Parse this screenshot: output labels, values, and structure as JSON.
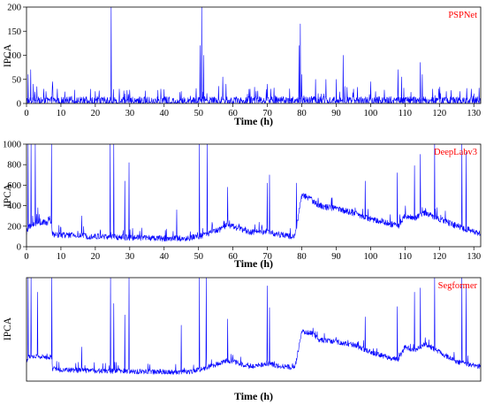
{
  "chart_data": [
    {
      "type": "line",
      "panel_id": "pspnet",
      "legend_label": "PSPNet",
      "ylabel": "IPCA",
      "xlabel": "Time (h)",
      "xlim": [
        0,
        132
      ],
      "ylim": [
        0,
        200
      ],
      "xticks": [
        0,
        10,
        20,
        30,
        40,
        50,
        60,
        70,
        80,
        90,
        100,
        110,
        120,
        130
      ],
      "yticks": [
        0,
        50,
        100,
        150,
        200
      ],
      "show_ytick_labels": true,
      "series_color": "#0000ff",
      "legend_color": "#ff0000",
      "baseline": [
        [
          0,
          5
        ],
        [
          20,
          5
        ],
        [
          40,
          5
        ],
        [
          60,
          5
        ],
        [
          80,
          6
        ],
        [
          100,
          6
        ],
        [
          120,
          5
        ],
        [
          132,
          5
        ]
      ],
      "noise": 9,
      "spikes": [
        [
          0.5,
          60
        ],
        [
          1.2,
          70
        ],
        [
          2,
          40
        ],
        [
          3,
          35
        ],
        [
          5,
          30
        ],
        [
          7.5,
          45
        ],
        [
          9,
          30
        ],
        [
          14,
          28
        ],
        [
          20,
          25
        ],
        [
          24.6,
          200
        ],
        [
          27,
          30
        ],
        [
          30,
          28
        ],
        [
          39,
          30
        ],
        [
          45,
          25
        ],
        [
          50.4,
          120
        ],
        [
          50.9,
          200
        ],
        [
          51.5,
          100
        ],
        [
          57,
          55
        ],
        [
          58,
          40
        ],
        [
          65,
          30
        ],
        [
          70,
          40
        ],
        [
          71,
          30
        ],
        [
          79.2,
          120
        ],
        [
          79.6,
          165
        ],
        [
          80,
          60
        ],
        [
          84,
          50
        ],
        [
          87,
          50
        ],
        [
          90,
          50
        ],
        [
          92,
          100
        ],
        [
          95,
          30
        ],
        [
          100,
          45
        ],
        [
          104,
          28
        ],
        [
          108,
          70
        ],
        [
          109,
          55
        ],
        [
          114.5,
          85
        ],
        [
          115,
          60
        ],
        [
          118,
          30
        ],
        [
          122,
          25
        ],
        [
          126,
          25
        ],
        [
          130,
          20
        ]
      ]
    },
    {
      "type": "line",
      "panel_id": "deeplabv3",
      "legend_label": "DeepLabv3",
      "ylabel": "IPCA",
      "xlabel": "Time (h)",
      "xlim": [
        0,
        132
      ],
      "ylim": [
        0,
        1000
      ],
      "xticks": [
        0,
        10,
        20,
        30,
        40,
        50,
        60,
        70,
        80,
        90,
        100,
        110,
        120,
        130
      ],
      "yticks": [
        0,
        200,
        400,
        600,
        800,
        1000
      ],
      "show_ytick_labels": true,
      "series_color": "#0000ff",
      "legend_color": "#ff0000",
      "baseline": [
        [
          0,
          140
        ],
        [
          1,
          200
        ],
        [
          3,
          230
        ],
        [
          7.3,
          240
        ],
        [
          7.5,
          120
        ],
        [
          10,
          115
        ],
        [
          20,
          100
        ],
        [
          30,
          90
        ],
        [
          40,
          80
        ],
        [
          47,
          80
        ],
        [
          50,
          100
        ],
        [
          55,
          150
        ],
        [
          58,
          200
        ],
        [
          60,
          200
        ],
        [
          65,
          140
        ],
        [
          70,
          150
        ],
        [
          73,
          120
        ],
        [
          78,
          100
        ],
        [
          79,
          300
        ],
        [
          80,
          500
        ],
        [
          82,
          480
        ],
        [
          85,
          400
        ],
        [
          90,
          370
        ],
        [
          95,
          330
        ],
        [
          100,
          270
        ],
        [
          105,
          230
        ],
        [
          108,
          200
        ],
        [
          110,
          300
        ],
        [
          113,
          280
        ],
        [
          116,
          330
        ],
        [
          120,
          270
        ],
        [
          125,
          200
        ],
        [
          130,
          150
        ],
        [
          132,
          130
        ]
      ],
      "noise": 30,
      "spikes": [
        [
          0.5,
          1000
        ],
        [
          1.3,
          1000
        ],
        [
          2.5,
          1000
        ],
        [
          3.3,
          380
        ],
        [
          7.3,
          1000
        ],
        [
          16,
          300
        ],
        [
          24.3,
          1000
        ],
        [
          25.4,
          1000
        ],
        [
          28.6,
          640
        ],
        [
          29.8,
          820
        ],
        [
          43.7,
          360
        ],
        [
          50.3,
          1000
        ],
        [
          52.5,
          1000
        ],
        [
          58.5,
          580
        ],
        [
          70,
          620
        ],
        [
          70.6,
          700
        ],
        [
          78.4,
          620
        ],
        [
          98.4,
          640
        ],
        [
          107.8,
          720
        ],
        [
          112.8,
          790
        ],
        [
          114.5,
          900
        ],
        [
          118.6,
          1000
        ],
        [
          126.5,
          1000
        ],
        [
          127.8,
          920
        ]
      ]
    },
    {
      "type": "line",
      "panel_id": "segformer",
      "legend_label": "Segformer",
      "ylabel": "IPCA",
      "xlabel": "Time (h)",
      "xlim": [
        0,
        132
      ],
      "ylim": [
        0,
        1000
      ],
      "xticks": [],
      "yticks": [],
      "show_ytick_labels": false,
      "series_color": "#0000ff",
      "legend_color": "#ff0000",
      "baseline": [
        [
          0,
          200
        ],
        [
          1,
          240
        ],
        [
          7.3,
          230
        ],
        [
          7.5,
          120
        ],
        [
          10,
          110
        ],
        [
          20,
          100
        ],
        [
          30,
          95
        ],
        [
          40,
          90
        ],
        [
          47,
          90
        ],
        [
          50,
          110
        ],
        [
          55,
          160
        ],
        [
          58,
          200
        ],
        [
          60,
          190
        ],
        [
          65,
          140
        ],
        [
          70,
          170
        ],
        [
          73,
          150
        ],
        [
          78,
          130
        ],
        [
          79,
          300
        ],
        [
          80,
          480
        ],
        [
          83,
          460
        ],
        [
          85,
          400
        ],
        [
          90,
          380
        ],
        [
          95,
          350
        ],
        [
          100,
          280
        ],
        [
          105,
          230
        ],
        [
          108,
          210
        ],
        [
          110,
          330
        ],
        [
          113,
          300
        ],
        [
          116,
          360
        ],
        [
          120,
          280
        ],
        [
          125,
          190
        ],
        [
          130,
          150
        ],
        [
          132,
          140
        ]
      ],
      "noise": 25,
      "spikes": [
        [
          0.5,
          1000
        ],
        [
          1.3,
          1000
        ],
        [
          3.2,
          860
        ],
        [
          7.4,
          1000
        ],
        [
          16,
          330
        ],
        [
          24.4,
          1000
        ],
        [
          25.4,
          750
        ],
        [
          28.6,
          640
        ],
        [
          29.8,
          1000
        ],
        [
          45,
          540
        ],
        [
          50.3,
          1000
        ],
        [
          52.2,
          1000
        ],
        [
          58.5,
          600
        ],
        [
          70,
          920
        ],
        [
          70.6,
          710
        ],
        [
          98.4,
          620
        ],
        [
          107.8,
          720
        ],
        [
          112.8,
          860
        ],
        [
          114.5,
          900
        ],
        [
          118.6,
          1000
        ],
        [
          126.5,
          1000
        ],
        [
          127.8,
          930
        ]
      ]
    }
  ]
}
